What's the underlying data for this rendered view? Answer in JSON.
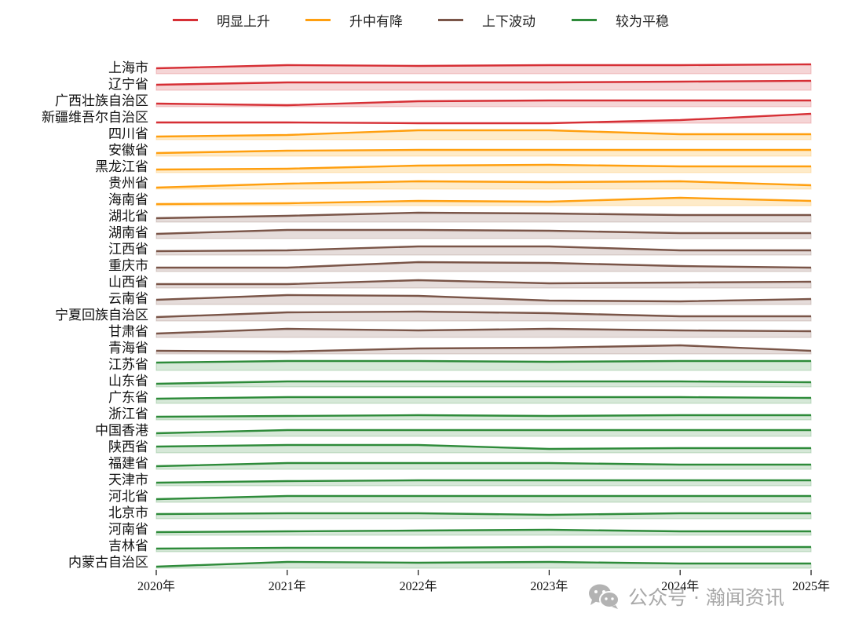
{
  "chart_data": {
    "type": "line",
    "subtype": "ridgeline-area",
    "title": "",
    "xlabel": "",
    "ylabel": "",
    "x": [
      "2020年",
      "2021年",
      "2022年",
      "2023年",
      "2024年",
      "2025年"
    ],
    "legend": [
      {
        "label": "明显上升",
        "color": "#d62f35"
      },
      {
        "label": "升中有降",
        "color": "#ff9f0f"
      },
      {
        "label": "上下波动",
        "color": "#7a5548"
      },
      {
        "label": "较为平稳",
        "color": "#2e8b3a"
      }
    ],
    "legend_position": "top",
    "grid": false,
    "value_note": "values are relative heights above each row baseline (pixel-estimated, arbitrary units)",
    "series": [
      {
        "name": "上海市",
        "group": "明显上升",
        "values": [
          7,
          11,
          10,
          11,
          11,
          12
        ]
      },
      {
        "name": "辽宁省",
        "group": "明显上升",
        "values": [
          7,
          10,
          10,
          10,
          11,
          12
        ]
      },
      {
        "name": "广西壮族自治区",
        "group": "明显上升",
        "values": [
          4,
          2,
          7,
          8,
          8,
          8
        ]
      },
      {
        "name": "新疆维吾尔自治区",
        "group": "明显上升",
        "values": [
          1,
          1,
          0,
          0,
          4,
          12
        ]
      },
      {
        "name": "四川省",
        "group": "升中有降",
        "values": [
          4,
          6,
          12,
          12,
          7,
          7
        ]
      },
      {
        "name": "安徽省",
        "group": "升中有降",
        "values": [
          4,
          7,
          8,
          8,
          8,
          8
        ]
      },
      {
        "name": "黑龙江省",
        "group": "升中有降",
        "values": [
          4,
          5,
          9,
          10,
          8,
          8
        ]
      },
      {
        "name": "贵州省",
        "group": "升中有降",
        "values": [
          2,
          7,
          10,
          9,
          10,
          5
        ]
      },
      {
        "name": "海南省",
        "group": "升中有降",
        "values": [
          2,
          3,
          6,
          5,
          10,
          6
        ]
      },
      {
        "name": "湖北省",
        "group": "上下波动",
        "values": [
          5,
          8,
          12,
          11,
          9,
          9
        ]
      },
      {
        "name": "湖南省",
        "group": "上下波动",
        "values": [
          6,
          11,
          11,
          10,
          7,
          7
        ]
      },
      {
        "name": "江西省",
        "group": "上下波动",
        "values": [
          5,
          6,
          11,
          11,
          6,
          6
        ]
      },
      {
        "name": "重庆市",
        "group": "上下波动",
        "values": [
          5,
          5,
          12,
          11,
          7,
          5
        ]
      },
      {
        "name": "山西省",
        "group": "上下波动",
        "values": [
          5,
          5,
          10,
          6,
          7,
          8
        ]
      },
      {
        "name": "云南省",
        "group": "上下波动",
        "values": [
          6,
          12,
          11,
          5,
          4,
          7
        ]
      },
      {
        "name": "宁夏回族自治区",
        "group": "上下波动",
        "values": [
          5,
          11,
          12,
          10,
          6,
          6
        ]
      },
      {
        "name": "甘肃省",
        "group": "上下波动",
        "values": [
          5,
          11,
          9,
          11,
          9,
          8
        ]
      },
      {
        "name": "青海省",
        "group": "上下波动",
        "values": [
          4,
          3,
          7,
          8,
          11,
          4
        ]
      },
      {
        "name": "江苏省",
        "group": "较为平稳",
        "values": [
          10,
          12,
          12,
          11,
          12,
          12
        ]
      },
      {
        "name": "山东省",
        "group": "较为平稳",
        "values": [
          4,
          7,
          7,
          7,
          7,
          6
        ]
      },
      {
        "name": "广东省",
        "group": "较为平稳",
        "values": [
          6,
          8,
          8,
          8,
          8,
          7
        ]
      },
      {
        "name": "浙江省",
        "group": "较为平稳",
        "values": [
          4,
          5,
          6,
          5,
          6,
          6
        ]
      },
      {
        "name": "中国香港",
        "group": "较为平稳",
        "values": [
          4,
          8,
          8,
          8,
          8,
          8
        ]
      },
      {
        "name": "陕西省",
        "group": "较为平稳",
        "values": [
          8,
          10,
          10,
          5,
          6,
          6
        ]
      },
      {
        "name": "福建省",
        "group": "较为平稳",
        "values": [
          4,
          8,
          8,
          8,
          6,
          6
        ]
      },
      {
        "name": "天津市",
        "group": "较为平稳",
        "values": [
          4,
          6,
          7,
          7,
          7,
          7
        ]
      },
      {
        "name": "河北省",
        "group": "较为平稳",
        "values": [
          4,
          8,
          8,
          8,
          8,
          8
        ]
      },
      {
        "name": "北京市",
        "group": "较为平稳",
        "values": [
          6,
          7,
          7,
          5,
          7,
          7
        ]
      },
      {
        "name": "河南省",
        "group": "较为平稳",
        "values": [
          4,
          5,
          6,
          7,
          5,
          5
        ]
      },
      {
        "name": "吉林省",
        "group": "较为平稳",
        "values": [
          4,
          5,
          5,
          6,
          6,
          6
        ]
      },
      {
        "name": "内蒙古自治区",
        "group": "较为平稳",
        "values": [
          2,
          8,
          7,
          8,
          6,
          6
        ]
      }
    ],
    "group_fill_colors": {
      "明显上升": "#f5d5d6",
      "升中有降": "#feebc9",
      "上下波动": "#e5dcda",
      "较为平稳": "#d6e8d8"
    }
  },
  "watermark": {
    "icon": "wechat-icon",
    "text": "公众号 · 瀚闻资讯"
  }
}
